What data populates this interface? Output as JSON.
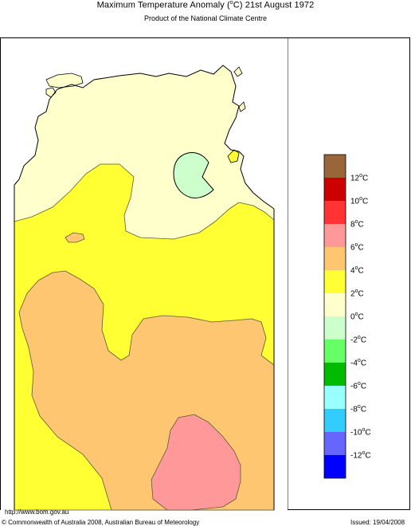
{
  "title": {
    "prefix": "Maximum Temperature Anomaly (",
    "degree": "o",
    "suffix": "C)  21st August 1972"
  },
  "subtitle": "Product of the National Climate Centre",
  "legend": [
    {
      "label": "12",
      "unit": "C",
      "color": "#99663a"
    },
    {
      "label": "10",
      "unit": "C",
      "color": "#cc0000"
    },
    {
      "label": "8",
      "unit": "C",
      "color": "#ff3333"
    },
    {
      "label": "6",
      "unit": "C",
      "color": "#ff9999"
    },
    {
      "label": "4",
      "unit": "C",
      "color": "#ffc672"
    },
    {
      "label": "2",
      "unit": "C",
      "color": "#ffff33"
    },
    {
      "label": "0",
      "unit": "C",
      "color": "#ffffcc"
    },
    {
      "label": "-2",
      "unit": "C",
      "color": "#ccffcc"
    },
    {
      "label": "-4",
      "unit": "C",
      "color": "#66ff66"
    },
    {
      "label": "-6",
      "unit": "C",
      "color": "#00bb00"
    },
    {
      "label": "-8",
      "unit": "C",
      "color": "#99ffff"
    },
    {
      "label": "-10",
      "unit": "C",
      "color": "#33ccff"
    },
    {
      "label": "-12",
      "unit": "C",
      "color": "#6666ff"
    },
    {
      "label": "",
      "unit": "",
      "color": "#0000ff"
    }
  ],
  "zone_colors": {
    "ocean": "#ffffff",
    "anomaly_0_2": "#ffffcc",
    "anomaly_2_4": "#ffff33",
    "anomaly_4_6": "#ffc672",
    "anomaly_6_8": "#ff9999",
    "anomaly_m2_0": "#ccffcc"
  },
  "footer": {
    "url": "http://www.bom.gov.au",
    "copyright": "© Commonwealth of Australia 2008, Australian Bureau of Meteorology",
    "issued": "Issued: 19/04/2008"
  }
}
